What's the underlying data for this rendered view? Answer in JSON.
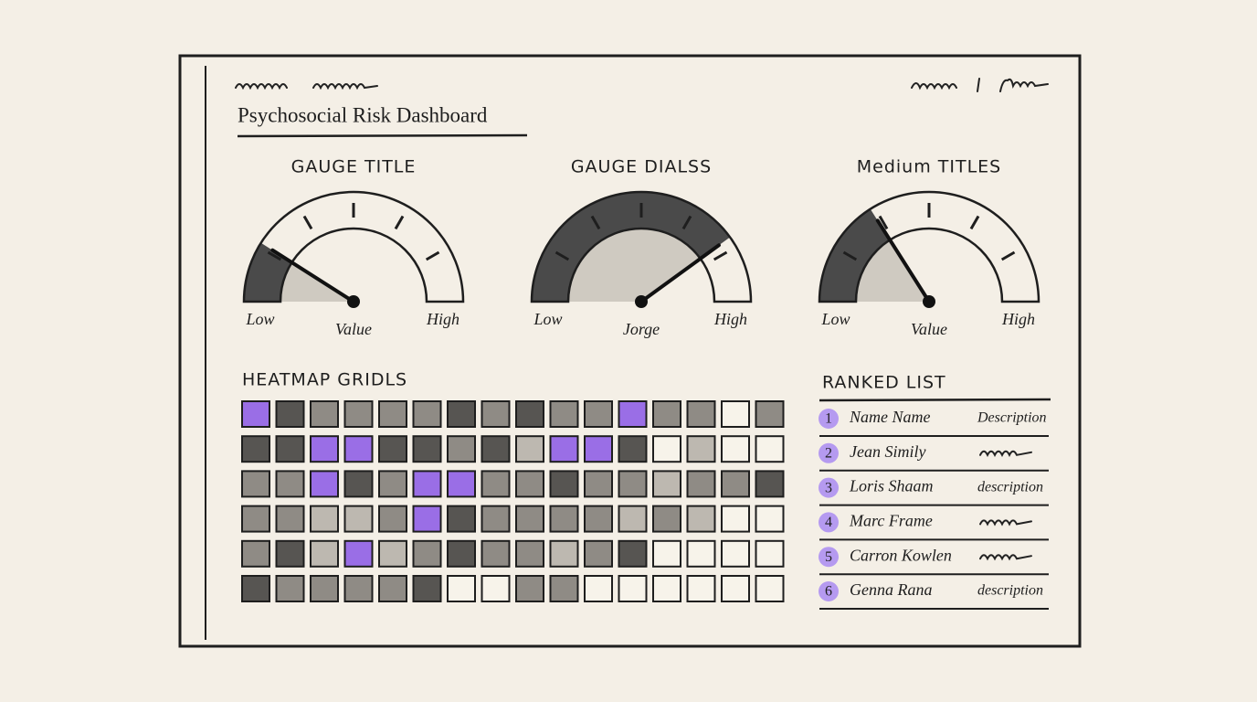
{
  "header": {
    "title": "Psychosocial Risk Dashboard"
  },
  "gauges": [
    {
      "title": "GAUGE TITLE",
      "low": "Low",
      "high": "High",
      "label": "Value",
      "range": [
        0,
        100
      ],
      "value": 18
    },
    {
      "title": "GAUGE DIALSS",
      "low": "Low",
      "high": "High",
      "label": "Jorge",
      "range": [
        0,
        100
      ],
      "value": 80
    },
    {
      "title": "Medium TITLES",
      "low": "Low",
      "high": "High",
      "label": "Value",
      "range": [
        0,
        100
      ],
      "value": 32
    }
  ],
  "heatmap": {
    "title": "HEATMAP GRIDLS",
    "rows": [
      [
        4,
        3,
        2,
        2,
        2,
        2,
        3,
        2,
        3,
        2,
        2,
        4,
        2,
        2,
        0,
        2
      ],
      [
        3,
        3,
        4,
        4,
        3,
        3,
        2,
        3,
        1,
        4,
        4,
        3,
        0,
        1,
        0,
        0
      ],
      [
        2,
        2,
        4,
        3,
        2,
        4,
        4,
        2,
        2,
        3,
        2,
        2,
        1,
        2,
        2,
        3
      ],
      [
        2,
        2,
        1,
        1,
        2,
        4,
        3,
        2,
        2,
        2,
        2,
        1,
        2,
        1,
        0,
        0
      ],
      [
        2,
        3,
        1,
        4,
        1,
        2,
        3,
        2,
        2,
        1,
        2,
        3,
        0,
        0,
        0,
        0
      ],
      [
        3,
        2,
        2,
        2,
        2,
        3,
        0,
        0,
        2,
        2,
        0,
        0,
        0,
        0,
        0,
        0
      ]
    ]
  },
  "ranked_list": {
    "title": "RANKED LIST",
    "items": [
      {
        "rank": 1,
        "name": "Name Name",
        "description": "Description"
      },
      {
        "rank": 2,
        "name": "Jean Simily"
      },
      {
        "rank": 3,
        "name": "Loris Shaam",
        "description": "description"
      },
      {
        "rank": 4,
        "name": "Marc Frame"
      },
      {
        "rank": 5,
        "name": "Carron Kowlen"
      },
      {
        "rank": 6,
        "name": "Genna Rana",
        "description": "description"
      }
    ]
  }
}
